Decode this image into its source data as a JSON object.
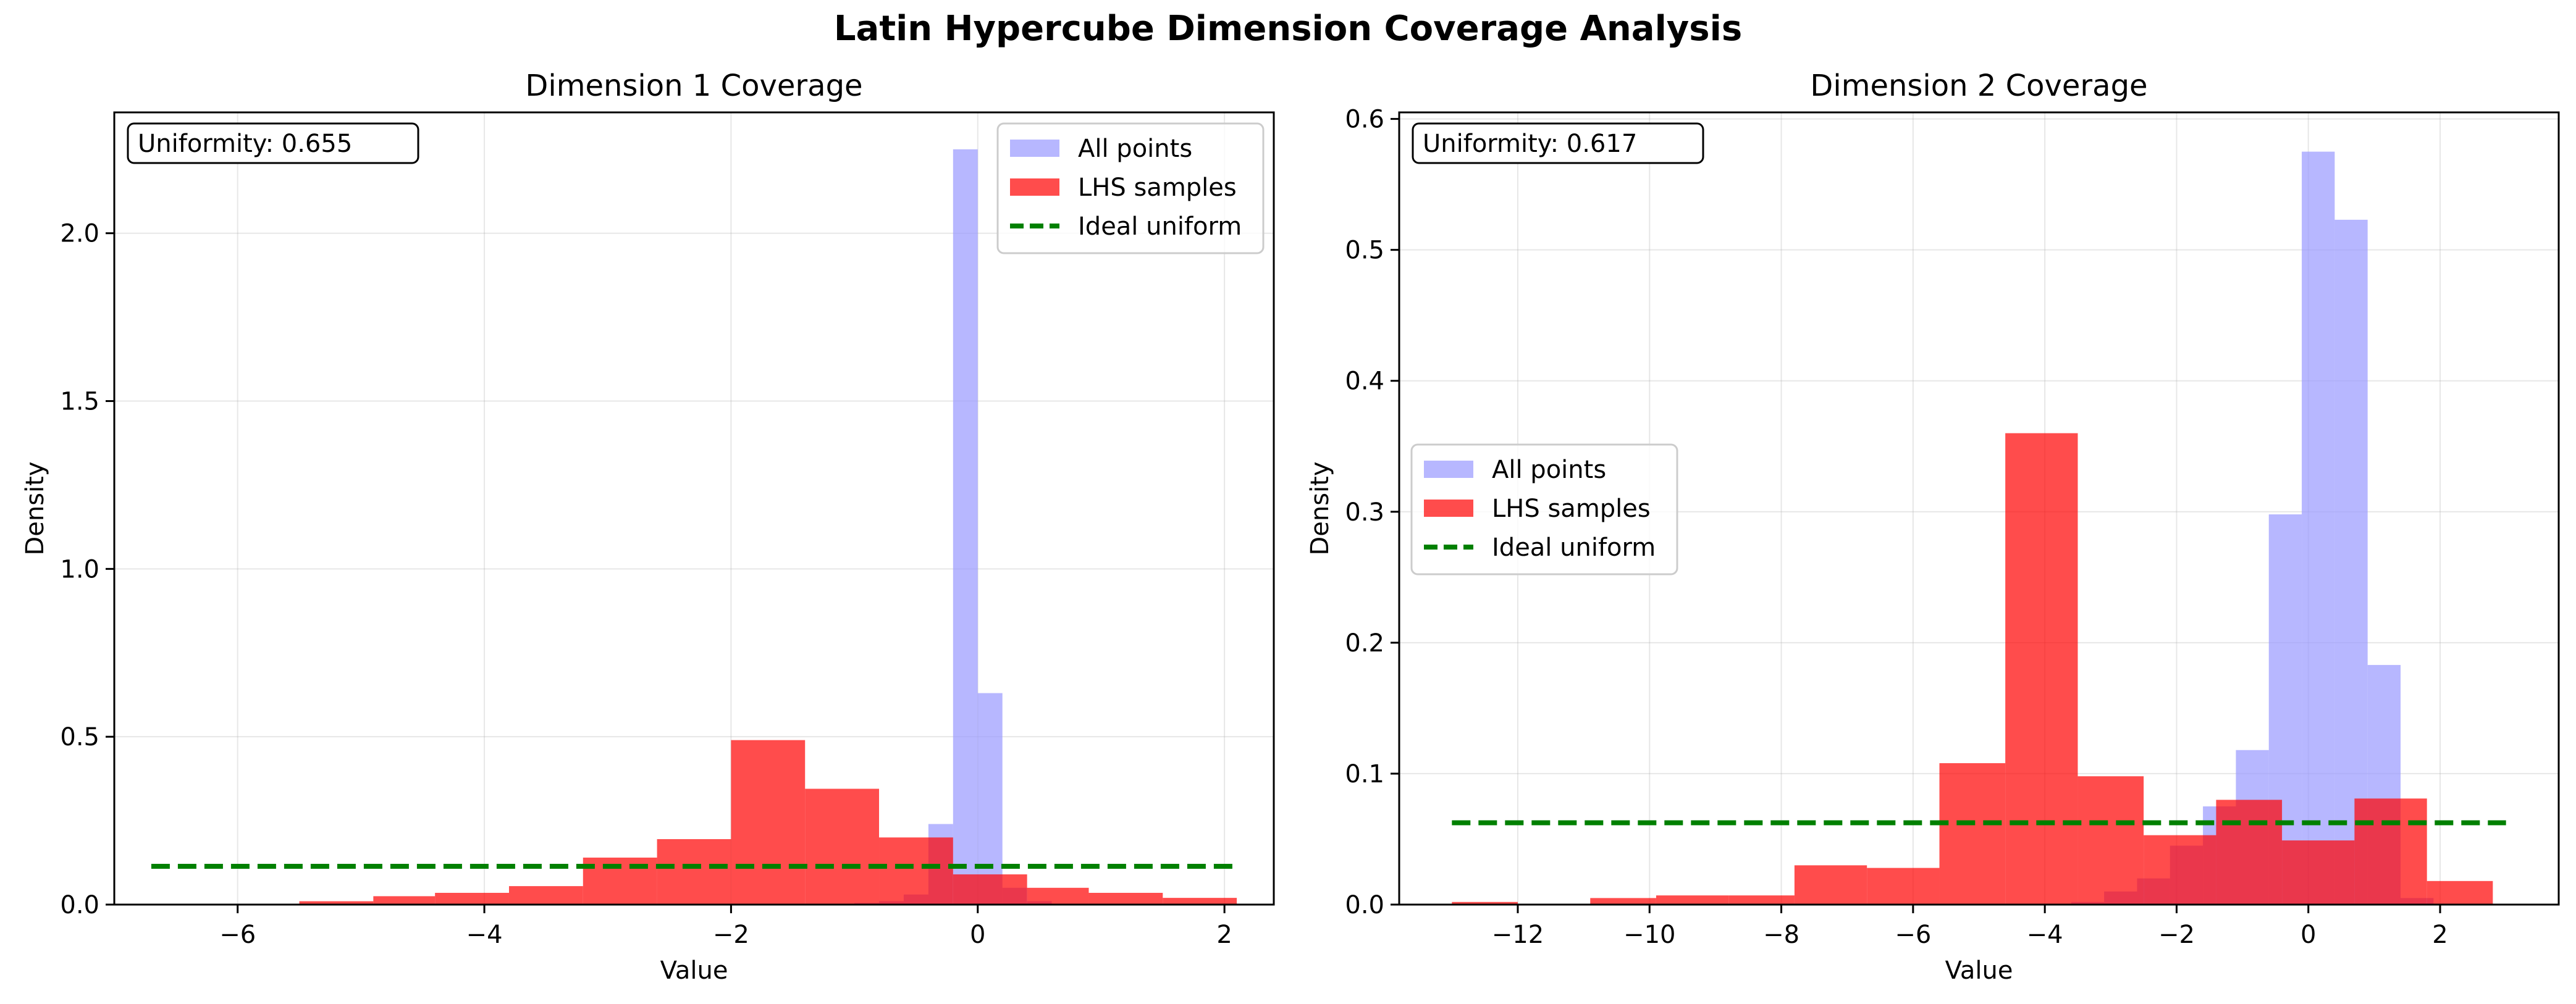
{
  "figure": {
    "title": "Latin Hypercube Dimension Coverage Analysis"
  },
  "colors": {
    "all_points": "#9999ff",
    "lhs_samples": "#ff0000",
    "ideal_uniform": "#008000"
  },
  "chart_data": [
    {
      "type": "bar",
      "title": "Dimension 1 Coverage",
      "xlabel": "Value",
      "ylabel": "Density",
      "xlim": [
        -7.0,
        2.4
      ],
      "ylim": [
        0,
        2.36
      ],
      "xticks": [
        -6,
        -4,
        -2,
        0,
        2
      ],
      "yticks": [
        0.0,
        0.5,
        1.0,
        1.5,
        2.0
      ],
      "ytick_format": 1,
      "grid": true,
      "annotation": "Uniformity: 0.655",
      "legend_position": "upper right",
      "legend": [
        "All points",
        "LHS samples",
        "Ideal uniform"
      ],
      "all_points_bins": [
        {
          "x0": -1.0,
          "x1": -0.8,
          "density": 0.005
        },
        {
          "x0": -0.8,
          "x1": -0.6,
          "density": 0.01
        },
        {
          "x0": -0.6,
          "x1": -0.4,
          "density": 0.03
        },
        {
          "x0": -0.4,
          "x1": -0.2,
          "density": 0.24
        },
        {
          "x0": -0.2,
          "x1": 0.0,
          "density": 2.25
        },
        {
          "x0": 0.0,
          "x1": 0.2,
          "density": 0.63
        },
        {
          "x0": 0.2,
          "x1": 0.4,
          "density": 0.05
        },
        {
          "x0": 0.4,
          "x1": 0.6,
          "density": 0.01
        }
      ],
      "lhs_bins": [
        {
          "x0": -6.7,
          "x1": -6.1,
          "density": 0.002
        },
        {
          "x0": -6.1,
          "x1": -5.5,
          "density": 0.002
        },
        {
          "x0": -5.5,
          "x1": -4.9,
          "density": 0.01
        },
        {
          "x0": -4.9,
          "x1": -4.4,
          "density": 0.025
        },
        {
          "x0": -4.4,
          "x1": -3.8,
          "density": 0.035
        },
        {
          "x0": -3.8,
          "x1": -3.2,
          "density": 0.055
        },
        {
          "x0": -3.2,
          "x1": -2.6,
          "density": 0.14
        },
        {
          "x0": -2.6,
          "x1": -2.0,
          "density": 0.195
        },
        {
          "x0": -2.0,
          "x1": -1.4,
          "density": 0.49
        },
        {
          "x0": -1.4,
          "x1": -0.8,
          "density": 0.345
        },
        {
          "x0": -0.8,
          "x1": -0.2,
          "density": 0.2
        },
        {
          "x0": -0.2,
          "x1": 0.4,
          "density": 0.09
        },
        {
          "x0": 0.4,
          "x1": 0.9,
          "density": 0.05
        },
        {
          "x0": 0.9,
          "x1": 1.5,
          "density": 0.035
        },
        {
          "x0": 1.5,
          "x1": 2.1,
          "density": 0.02
        }
      ],
      "ideal_uniform": {
        "x0": -6.7,
        "x1": 2.1,
        "density": 0.114
      }
    },
    {
      "type": "bar",
      "title": "Dimension 2 Coverage",
      "xlabel": "Value",
      "ylabel": "Density",
      "xlim": [
        -13.8,
        3.8
      ],
      "ylim": [
        0,
        0.605
      ],
      "xticks": [
        -12,
        -10,
        -8,
        -6,
        -4,
        -2,
        0,
        2
      ],
      "yticks": [
        0.0,
        0.1,
        0.2,
        0.3,
        0.4,
        0.5,
        0.6
      ],
      "ytick_format": 1,
      "grid": true,
      "annotation": "Uniformity: 0.617",
      "legend_position": "center left",
      "legend": [
        "All points",
        "LHS samples",
        "Ideal uniform"
      ],
      "all_points_bins": [
        {
          "x0": -3.6,
          "x1": -3.1,
          "density": 0.002
        },
        {
          "x0": -3.1,
          "x1": -2.6,
          "density": 0.01
        },
        {
          "x0": -2.6,
          "x1": -2.1,
          "density": 0.02
        },
        {
          "x0": -2.1,
          "x1": -1.6,
          "density": 0.045
        },
        {
          "x0": -1.6,
          "x1": -1.1,
          "density": 0.075
        },
        {
          "x0": -1.1,
          "x1": -0.6,
          "density": 0.118
        },
        {
          "x0": -0.6,
          "x1": -0.1,
          "density": 0.298
        },
        {
          "x0": -0.1,
          "x1": 0.4,
          "density": 0.575
        },
        {
          "x0": 0.4,
          "x1": 0.9,
          "density": 0.523
        },
        {
          "x0": 0.9,
          "x1": 1.4,
          "density": 0.183
        },
        {
          "x0": 1.4,
          "x1": 1.9,
          "density": 0.005
        }
      ],
      "lhs_bins": [
        {
          "x0": -13.0,
          "x1": -12.0,
          "density": 0.002
        },
        {
          "x0": -12.0,
          "x1": -10.9,
          "density": 0.0
        },
        {
          "x0": -10.9,
          "x1": -9.9,
          "density": 0.005
        },
        {
          "x0": -9.9,
          "x1": -8.8,
          "density": 0.007
        },
        {
          "x0": -8.8,
          "x1": -7.8,
          "density": 0.007
        },
        {
          "x0": -7.8,
          "x1": -6.7,
          "density": 0.03
        },
        {
          "x0": -6.7,
          "x1": -5.6,
          "density": 0.028
        },
        {
          "x0": -5.6,
          "x1": -4.6,
          "density": 0.108
        },
        {
          "x0": -4.6,
          "x1": -3.5,
          "density": 0.36
        },
        {
          "x0": -3.5,
          "x1": -2.5,
          "density": 0.098
        },
        {
          "x0": -2.5,
          "x1": -1.4,
          "density": 0.053
        },
        {
          "x0": -1.4,
          "x1": -0.4,
          "density": 0.08
        },
        {
          "x0": -0.4,
          "x1": 0.7,
          "density": 0.049
        },
        {
          "x0": 0.7,
          "x1": 1.8,
          "density": 0.081
        },
        {
          "x0": 1.8,
          "x1": 2.8,
          "density": 0.018
        }
      ],
      "ideal_uniform": {
        "x0": -13.0,
        "x1": 3.0,
        "density": 0.0625
      }
    }
  ]
}
